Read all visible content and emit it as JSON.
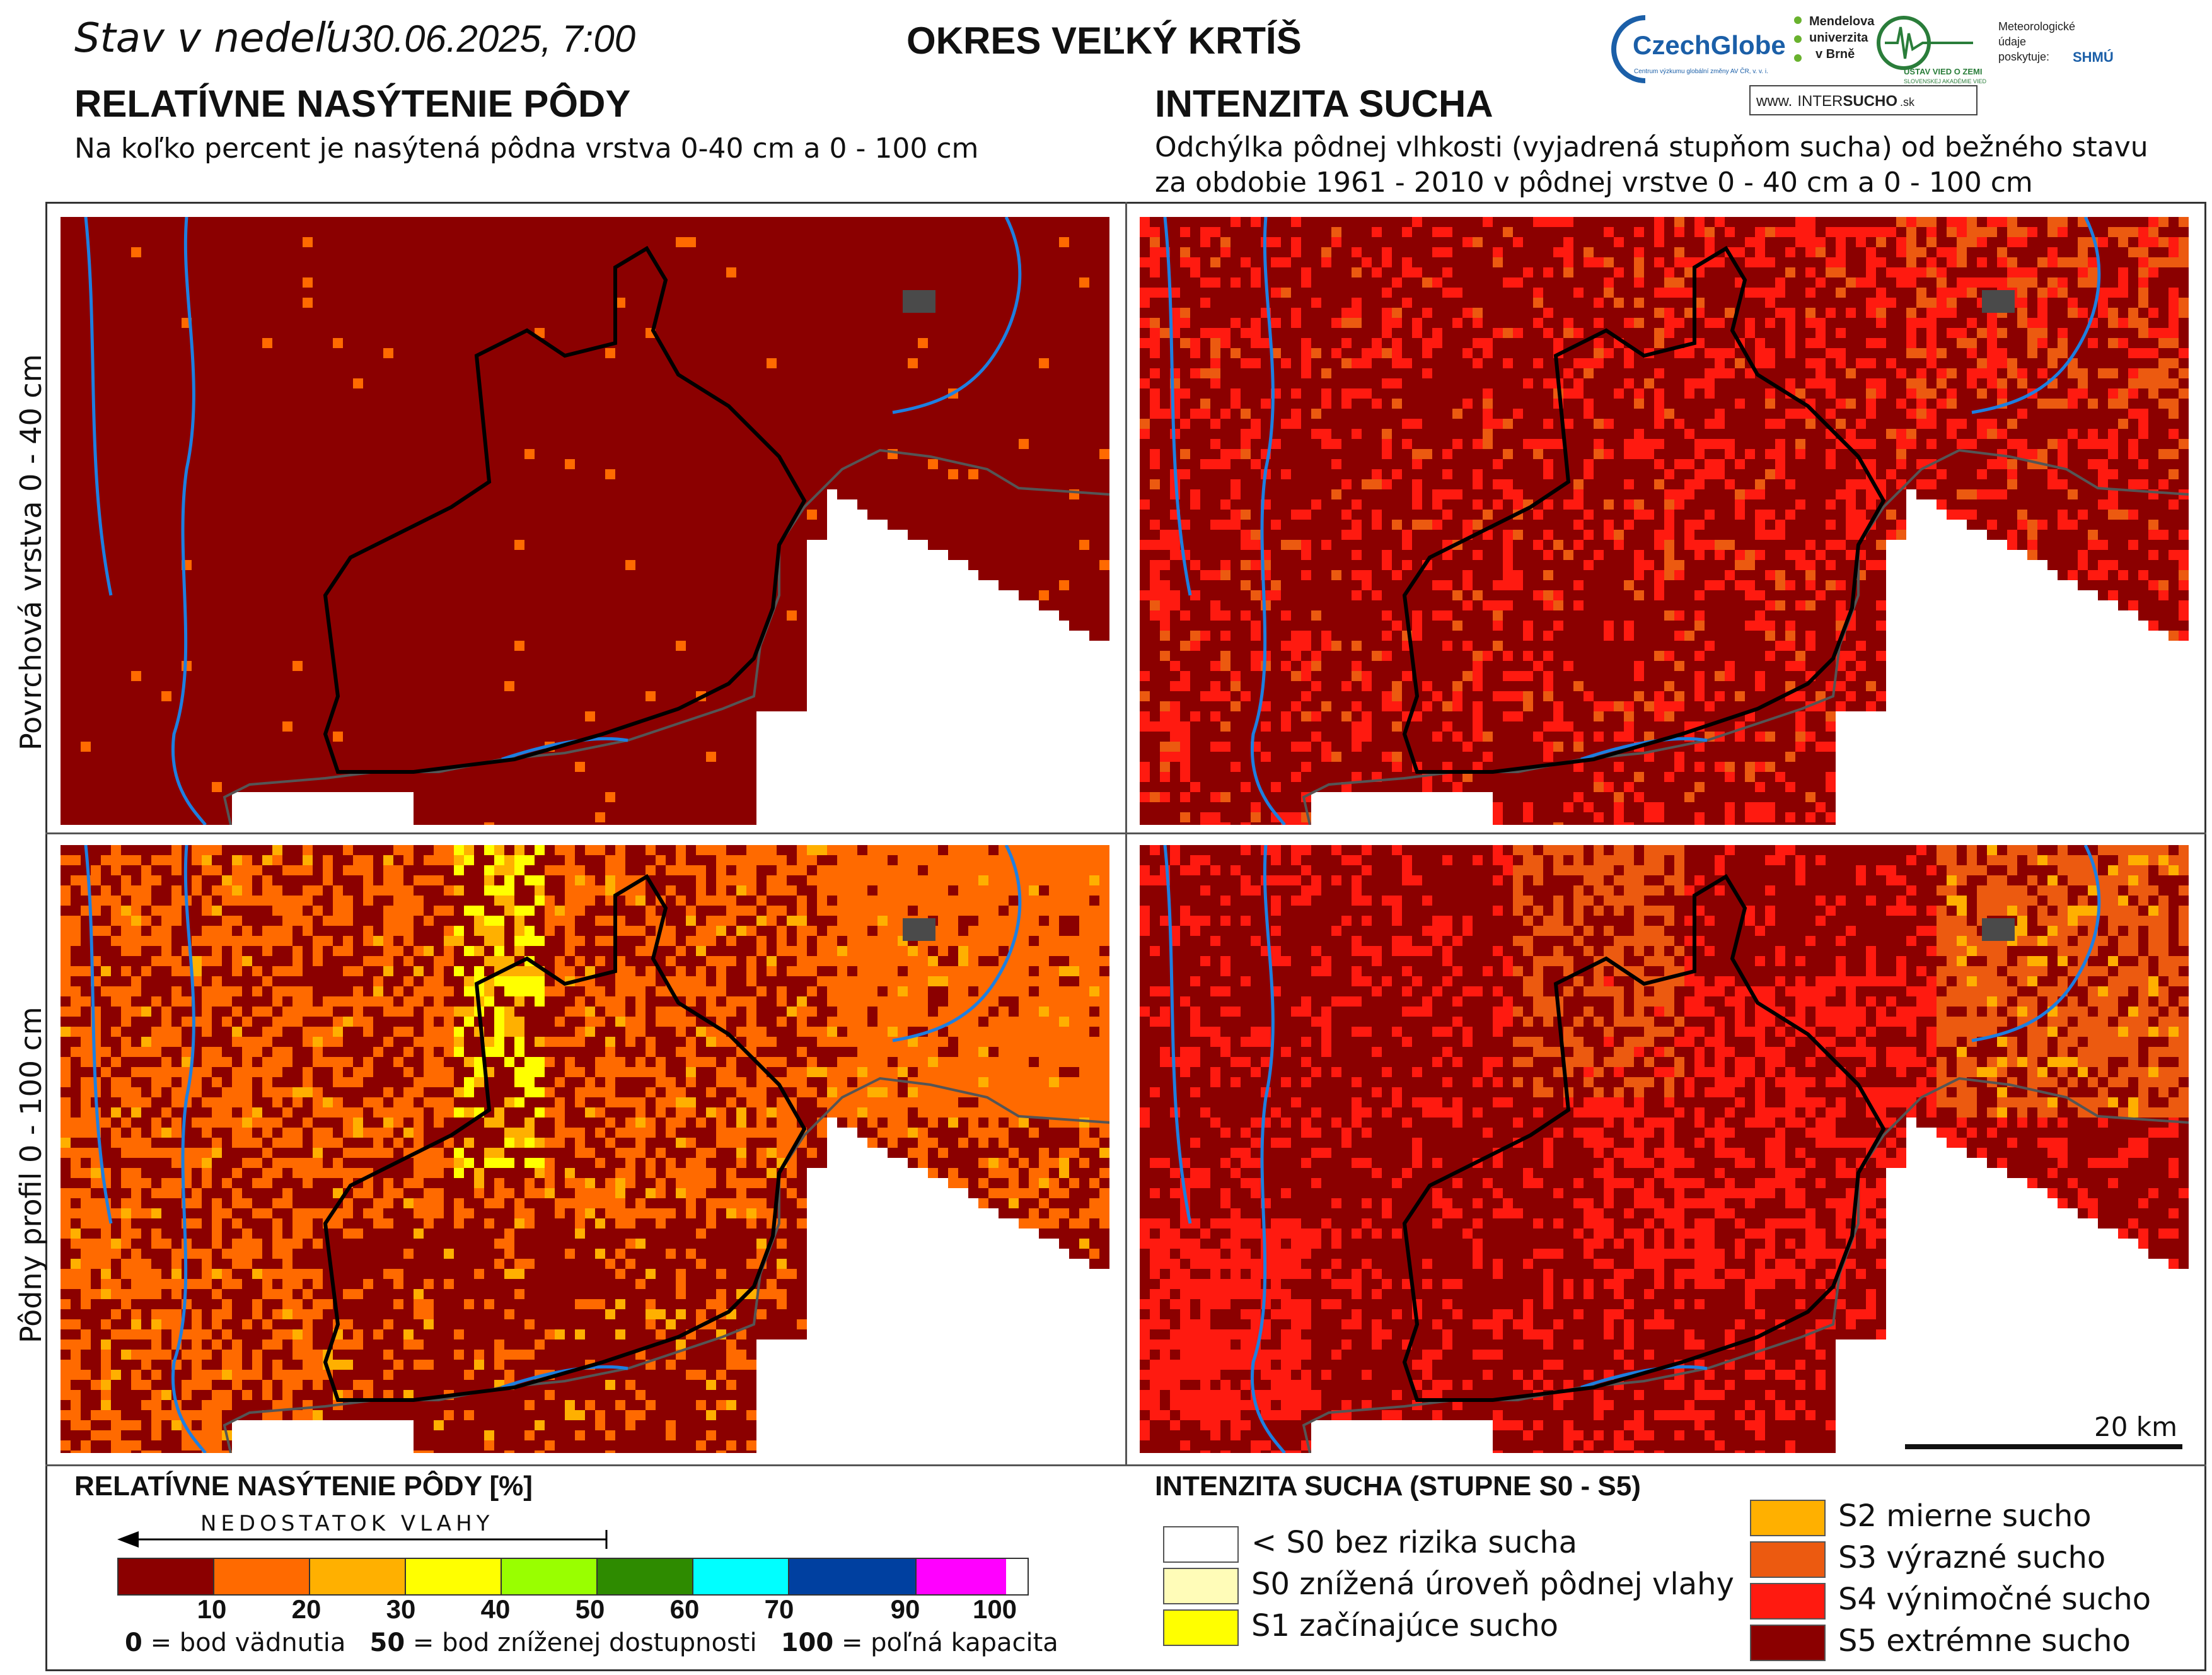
{
  "header": {
    "date_prefix": "Stav v nedeľu",
    "date_value": "30.06.2025, 7:00",
    "district": "OKRES  VEĽKÝ KRTÍŠ"
  },
  "left_panel": {
    "title": "RELATÍVNE NASÝTENIE PÔDY",
    "subtitle": "Na koľko percent je nasýtená pôdna vrstva 0-40 cm a 0 - 100 cm"
  },
  "right_panel": {
    "title": "INTENZITA SUCHA",
    "subtitle_line1": "Odchýlka pôdnej vlhkosti (vyjadrená stupňom sucha) od bežného stavu",
    "subtitle_line2": "za obdobie 1961 - 2010 v pôdnej vrstve 0 - 40 cm a 0 - 100 cm"
  },
  "row_labels": {
    "top": "Povrchová vrstva 0 - 40 cm",
    "bottom": "Pôdny profil 0 - 100 cm"
  },
  "logos": {
    "czechglobe": "CzechGlobe",
    "czechglobe_sub": "Centrum výzkumu globální změny AV ČR, v. v. i.",
    "mendel_1": "Mendelova",
    "mendel_2": "univerzita",
    "mendel_3": "v Brně",
    "uvz": "ÚSTAV VIED O ZEMI",
    "uvz_sub": "SLOVENSKEJ AKADÉMIE VIED",
    "meteo_1": "Meteorologické",
    "meteo_2": "údaje",
    "meteo_3": "poskytuje:",
    "shmu": "SHMÚ",
    "intersucho_prefix": "www.",
    "intersucho_inter": "INTER",
    "intersucho_sucho": "SUCHO",
    "intersucho_suffix": ".sk"
  },
  "scale_bar": {
    "label": "20 km"
  },
  "saturation_legend": {
    "title": "RELATÍVNE NASÝTENIE PÔDY [%]",
    "deficit_label": "NEDOSTATOK VLAHY",
    "ticks": [
      "10",
      "20",
      "30",
      "40",
      "50",
      "60",
      "70",
      "90",
      "100"
    ],
    "colors": [
      "#8b0000",
      "#ff6a00",
      "#ffb000",
      "#ffff00",
      "#99ff00",
      "#2e8b00",
      "#00ffff",
      "#0040a0",
      "#ff00ff"
    ],
    "note_0_value": "0",
    "note_0_text": "= bod vädnutia",
    "note_50_value": "50",
    "note_50_text": "= bod zníženej dostupnosti",
    "note_100_value": "100",
    "note_100_text": "= poľná kapacita"
  },
  "drought_legend": {
    "title": "INTENZITA SUCHA (STUPNE S0 - S5)",
    "classes": [
      {
        "label": "< S0 bez rizika sucha",
        "color": "#ffffff"
      },
      {
        "label": "S0 znížená úroveň pôdnej vlahy",
        "color": "#fffcb8"
      },
      {
        "label": "S1 začínajúce sucho",
        "color": "#ffff00"
      },
      {
        "label": "S2 mierne sucho",
        "color": "#ffb000"
      },
      {
        "label": "S3 výrazné sucho",
        "color": "#ec5a10"
      },
      {
        "label": "S4 výnimočné sucho",
        "color": "#ff1a10"
      },
      {
        "label": "S5 extrémne sucho",
        "color": "#8b0000"
      }
    ]
  },
  "map_colors": {
    "dark_red": "#8b0000",
    "red": "#ff1a10",
    "orange_red": "#ec5a10",
    "orange": "#ff6a00",
    "amber": "#ffb000",
    "yellow": "#ffff00",
    "river": "#1e7fe0",
    "boundary": "#000000",
    "border": "#555555",
    "town": "#4a4a4a"
  }
}
